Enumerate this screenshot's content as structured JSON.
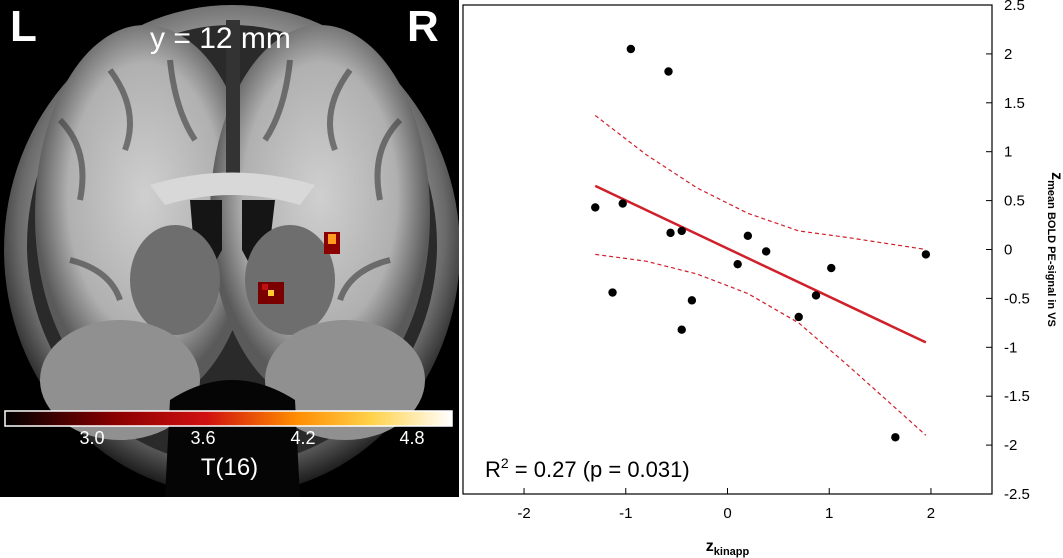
{
  "brain": {
    "left_label": "L",
    "right_label": "R",
    "slice_label": "y = 12 mm",
    "colorbar": {
      "ticks": [
        "3.0",
        "3.6",
        "4.2",
        "4.8"
      ],
      "title": "T(16)",
      "colors": [
        "#000000",
        "#8b0000",
        "#d01010",
        "#ff8c00",
        "#ffd24a",
        "#ffffff"
      ]
    }
  },
  "chart_data": {
    "type": "scatter",
    "xlabel_main": "z",
    "xlabel_sub": "kinapp",
    "ylabel_main": "z",
    "ylabel_sub": "mean BOLD PE-signal in VS",
    "xlim": [
      -2.6,
      2.6
    ],
    "ylim": [
      -2.5,
      2.5
    ],
    "xticks": [
      -2,
      -1,
      0,
      1,
      2
    ],
    "yticks": [
      2.5,
      2,
      1.5,
      1,
      0.5,
      0,
      -0.5,
      -1,
      -1.5,
      -2,
      -2.5
    ],
    "annotation_prefix": "R",
    "annotation_sup": "2",
    "annotation_rest": " = 0.27 (p = 0.031)",
    "points": [
      {
        "x": -0.95,
        "y": 2.05
      },
      {
        "x": -0.58,
        "y": 1.82
      },
      {
        "x": -1.3,
        "y": 0.43
      },
      {
        "x": -1.03,
        "y": 0.47
      },
      {
        "x": -0.56,
        "y": 0.17
      },
      {
        "x": -0.45,
        "y": 0.19
      },
      {
        "x": 0.2,
        "y": 0.14
      },
      {
        "x": 0.38,
        "y": -0.02
      },
      {
        "x": 0.1,
        "y": -0.15
      },
      {
        "x": 1.02,
        "y": -0.19
      },
      {
        "x": 1.95,
        "y": -0.05
      },
      {
        "x": -1.13,
        "y": -0.44
      },
      {
        "x": -0.35,
        "y": -0.52
      },
      {
        "x": 0.87,
        "y": -0.47
      },
      {
        "x": -0.45,
        "y": -0.82
      },
      {
        "x": 0.7,
        "y": -0.69
      },
      {
        "x": 1.65,
        "y": -1.92
      }
    ],
    "fit_line": {
      "x": [
        -1.3,
        1.95
      ],
      "y": [
        0.65,
        -0.95
      ],
      "color": "#d0202a"
    },
    "ci_upper": {
      "x": [
        -1.3,
        -0.8,
        -0.3,
        0.2,
        0.7,
        1.2,
        1.95
      ],
      "y": [
        1.37,
        0.97,
        0.63,
        0.37,
        0.19,
        0.12,
        0.0
      ]
    },
    "ci_lower": {
      "x": [
        -1.3,
        -0.8,
        -0.3,
        0.2,
        0.7,
        1.2,
        1.95
      ],
      "y": [
        -0.05,
        -0.12,
        -0.25,
        -0.45,
        -0.75,
        -1.2,
        -1.9
      ]
    },
    "grid": false
  }
}
